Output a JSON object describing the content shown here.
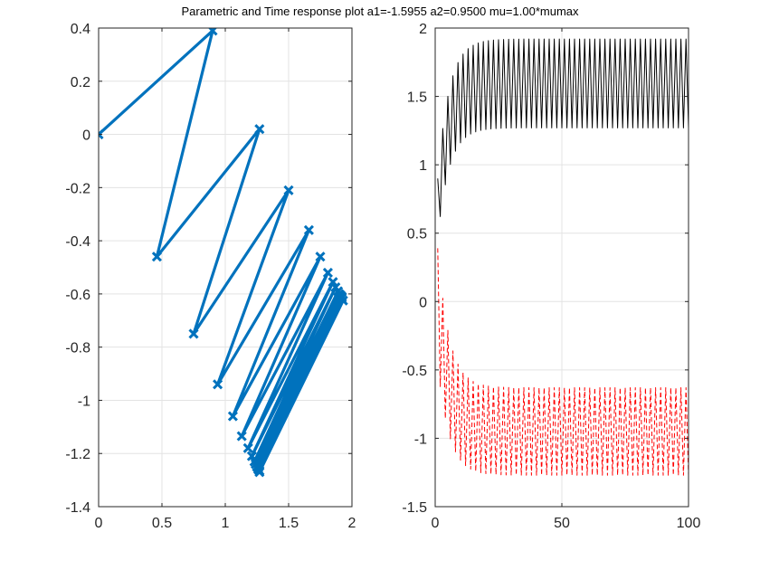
{
  "figure": {
    "title": "Parametric and Time response plot a1=-1.5955 a2=0.9500 mu=1.00*mumax"
  },
  "chart_data": [
    {
      "type": "line",
      "panel": "parametric",
      "xlim": [
        0,
        2
      ],
      "ylim": [
        -1.4,
        0.4
      ],
      "x_ticks": [
        0,
        0.5,
        1,
        1.5,
        2
      ],
      "x_tick_labels": [
        "0",
        "0.5",
        "1",
        "1.5",
        "2"
      ],
      "y_ticks": [
        -1.4,
        -1.2,
        -1.0,
        -0.8,
        -0.6,
        -0.4,
        -0.2,
        0,
        0.2,
        0.4
      ],
      "y_tick_labels": [
        "-1.4",
        "-1.2",
        "-1",
        "-0.8",
        "-0.6",
        "-0.4",
        "-0.2",
        "0",
        "0.2",
        "0.4"
      ],
      "grid": true,
      "series": [
        {
          "color": "#0072BD",
          "marker": "x",
          "x": [
            0,
            0.9,
            0.46,
            1.27,
            0.75,
            1.5,
            0.94,
            1.66,
            1.06,
            1.75,
            1.13,
            1.81,
            1.18,
            1.85,
            1.21,
            1.87,
            1.23,
            1.89,
            1.24,
            1.9,
            1.25,
            1.91,
            1.26,
            1.92,
            1.26,
            1.92,
            1.27,
            1.93,
            1.27
          ],
          "y": [
            0,
            0.39,
            -0.46,
            0.02,
            -0.75,
            -0.21,
            -0.94,
            -0.36,
            -1.06,
            -0.46,
            -1.135,
            -0.52,
            -1.18,
            -0.555,
            -1.21,
            -0.575,
            -1.23,
            -0.59,
            -1.24,
            -0.6,
            -1.25,
            -0.605,
            -1.255,
            -0.61,
            -1.26,
            -0.615,
            -1.265,
            -0.625,
            -1.27
          ]
        }
      ]
    },
    {
      "type": "line",
      "panel": "time-response",
      "xlim": [
        0,
        100
      ],
      "ylim": [
        -1.5,
        2
      ],
      "x_ticks": [
        0,
        50,
        100
      ],
      "x_tick_labels": [
        "0",
        "50",
        "100"
      ],
      "y_ticks": [
        -1.5,
        -1,
        -0.5,
        0,
        0.5,
        1,
        1.5,
        2
      ],
      "y_tick_labels": [
        "-1.5",
        "-1",
        "-0.5",
        "0",
        "0.5",
        "1",
        "1.5",
        "2"
      ],
      "grid": true,
      "series": [
        {
          "color": "#000000",
          "line_style": "solid",
          "model": "oscillating",
          "t_start": 1,
          "t_end": 100,
          "t_step": 1,
          "upper_start": 0.9,
          "upper_final": 1.92,
          "lower_start": 0.46,
          "lower_final": 1.27,
          "settle_time": 4.5
        },
        {
          "color": "#FF0000",
          "line_style": "dashed",
          "model": "oscillating",
          "t_start": 1,
          "t_end": 100,
          "t_step": 1,
          "upper_start": 0.39,
          "upper_final": -0.63,
          "lower_start": -0.46,
          "lower_final": -1.27,
          "settle_time": 4.5
        }
      ]
    }
  ]
}
